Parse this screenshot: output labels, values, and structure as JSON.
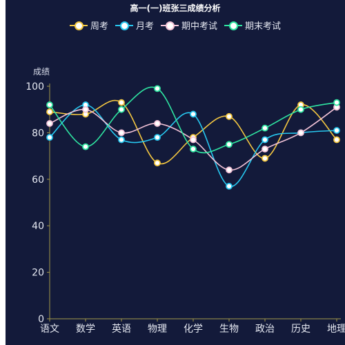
{
  "chart_data": {
    "type": "line",
    "title": "高一(一)班张三成绩分析",
    "ylabel": "成绩",
    "xlabel": "",
    "categories": [
      "语文",
      "数学",
      "英语",
      "物理",
      "化学",
      "生物",
      "政治",
      "历史",
      "地理"
    ],
    "ylim": [
      0,
      100
    ],
    "yticks": [
      0,
      20,
      40,
      60,
      80,
      100
    ],
    "grid": false,
    "legend_position": "top-center",
    "smooth": true,
    "series": [
      {
        "name": "周考",
        "color": "#f5c841",
        "values": [
          89,
          88,
          93,
          67,
          78,
          87,
          69,
          92,
          77
        ]
      },
      {
        "name": "月考",
        "color": "#27c8f0",
        "values": [
          78,
          92,
          77,
          78,
          88,
          57,
          77,
          80,
          81
        ]
      },
      {
        "name": "期中考试",
        "color": "#f4c4d8",
        "values": [
          84,
          90,
          80,
          84,
          77,
          64,
          73,
          80,
          91
        ]
      },
      {
        "name": "期末考试",
        "color": "#2fe6a2",
        "values": [
          92,
          74,
          90,
          99,
          73,
          75,
          82,
          90,
          93
        ]
      }
    ],
    "axis_color": "#a69a4a"
  }
}
